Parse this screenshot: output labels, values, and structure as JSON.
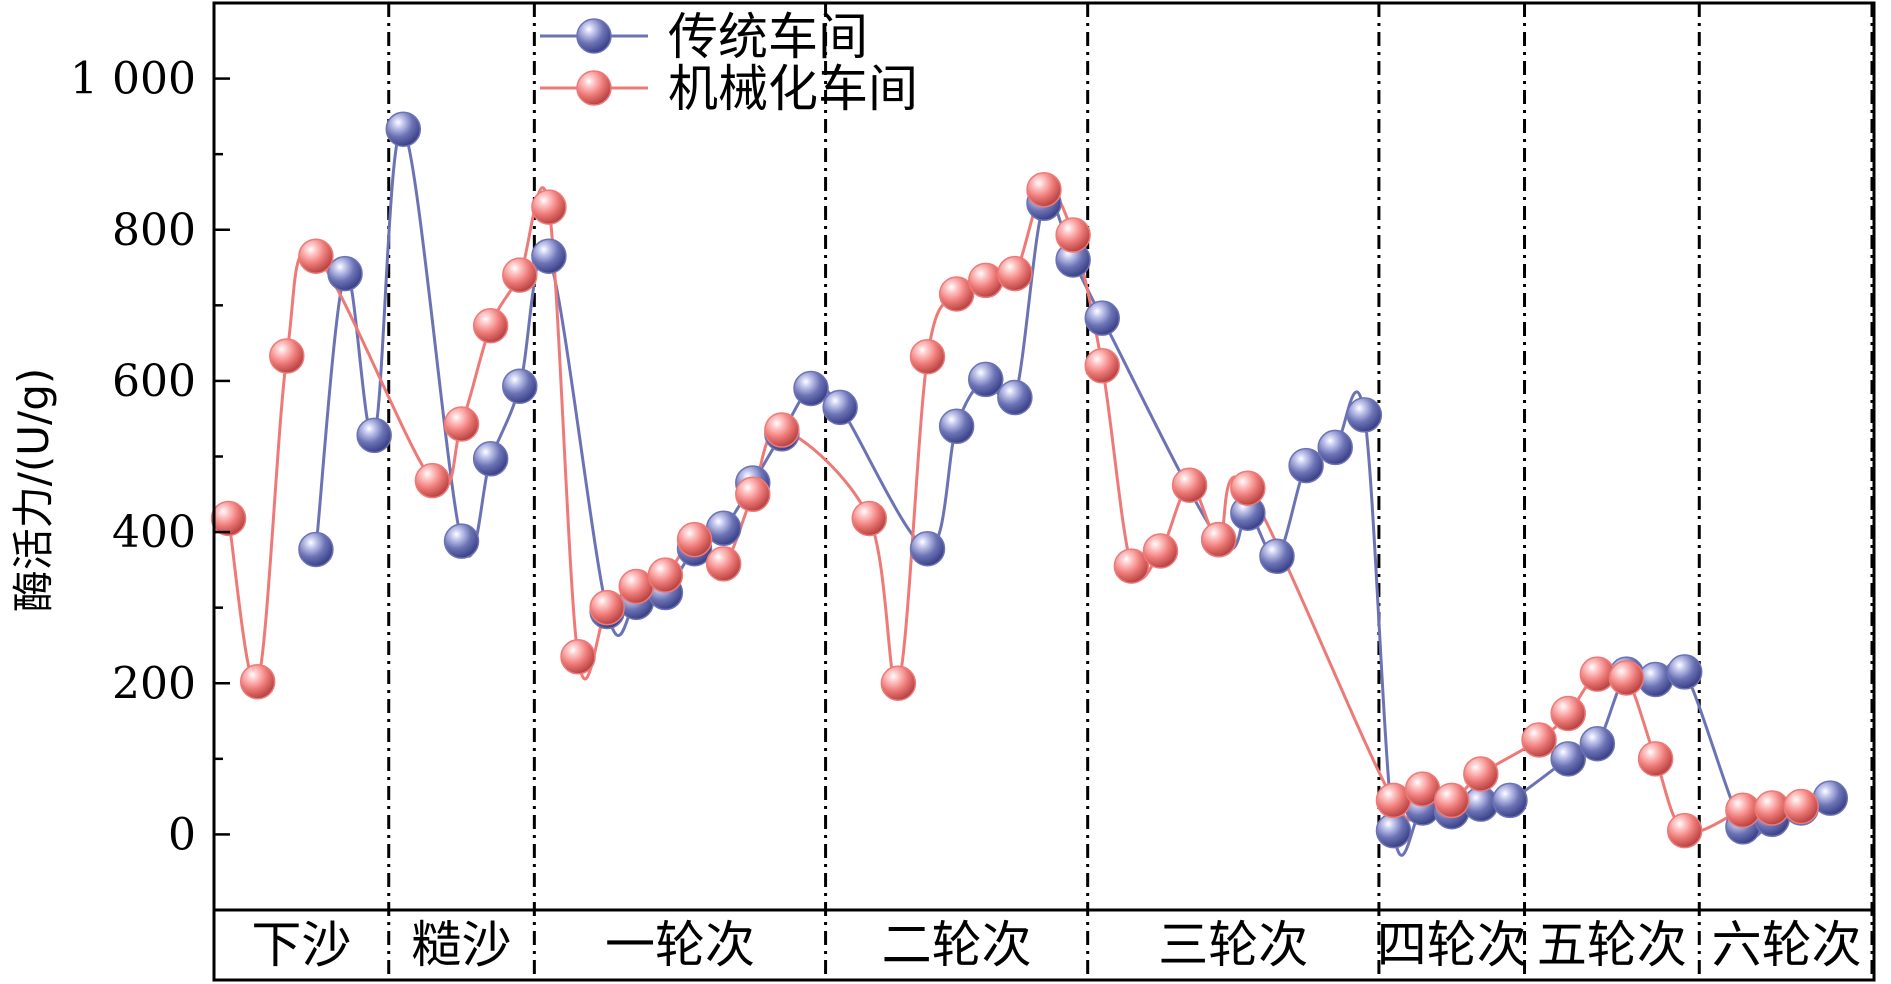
{
  "chart_data": {
    "type": "line",
    "ylabel": "酶活力/(U/g)",
    "xlabel": "",
    "ylim": [
      -100,
      1100
    ],
    "yticks": [
      0,
      200,
      400,
      600,
      800,
      1000
    ],
    "ytick_labels": [
      "0",
      "200",
      "400",
      "600",
      "800",
      "1 000"
    ],
    "stages": [
      {
        "label": "下沙",
        "start": 0,
        "end": 6
      },
      {
        "label": "糙沙",
        "start": 6,
        "end": 11
      },
      {
        "label": "一轮次",
        "start": 11,
        "end": 21
      },
      {
        "label": "二轮次",
        "start": 21,
        "end": 30
      },
      {
        "label": "三轮次",
        "start": 30,
        "end": 40
      },
      {
        "label": "四轮次",
        "start": 40,
        "end": 45
      },
      {
        "label": "五轮次",
        "start": 45,
        "end": 51
      },
      {
        "label": "六轮次",
        "start": 51,
        "end": 57
      }
    ],
    "xlim": [
      0,
      57
    ],
    "legend_position": "top-center",
    "series": [
      {
        "name": "传统车间",
        "color": "#6c73b5",
        "x": [
          3.5,
          4.5,
          5.5,
          6.5,
          8.5,
          9.5,
          10.5,
          11.5,
          13.5,
          14.5,
          15.5,
          16.5,
          17.5,
          18.5,
          19.5,
          20.5,
          21.5,
          24.5,
          25.5,
          26.5,
          27.5,
          28.5,
          29.5,
          30.5,
          34.5,
          35.5,
          36.5,
          37.5,
          38.5,
          39.5,
          40.5,
          41.5,
          42.5,
          43.5,
          44.5,
          46.5,
          47.5,
          48.5,
          49.5,
          50.5,
          52.5,
          53.5,
          54.5,
          55.5
        ],
        "values": [
          377,
          742,
          528,
          933,
          388,
          497,
          593,
          765,
          295,
          307,
          320,
          378,
          405,
          465,
          530,
          590,
          565,
          378,
          540,
          602,
          578,
          835,
          760,
          683,
          390,
          425,
          368,
          488,
          512,
          555,
          5,
          35,
          30,
          40,
          45,
          100,
          120,
          212,
          205,
          215,
          10,
          20,
          35,
          48
        ]
      },
      {
        "name": "机械化车间",
        "color": "#ee7a78",
        "x": [
          0.5,
          1.5,
          2.5,
          3.5,
          7.5,
          8.5,
          9.5,
          10.5,
          11.5,
          12.5,
          13.5,
          14.5,
          15.5,
          16.5,
          17.5,
          18.5,
          19.5,
          22.5,
          23.5,
          24.5,
          25.5,
          26.5,
          27.5,
          28.5,
          29.5,
          30.5,
          31.5,
          32.5,
          33.5,
          34.5,
          35.5,
          40.5,
          41.5,
          42.5,
          43.5,
          45.5,
          46.5,
          47.5,
          48.5,
          49.5,
          50.5,
          52.5,
          53.5,
          54.5
        ],
        "values": [
          418,
          202,
          633,
          765,
          468,
          543,
          673,
          740,
          830,
          235,
          300,
          328,
          343,
          390,
          358,
          450,
          535,
          418,
          200,
          632,
          715,
          733,
          742,
          853,
          793,
          620,
          355,
          375,
          462,
          390,
          458,
          45,
          60,
          45,
          80,
          125,
          160,
          212,
          207,
          100,
          5,
          32,
          35,
          37
        ]
      }
    ]
  }
}
